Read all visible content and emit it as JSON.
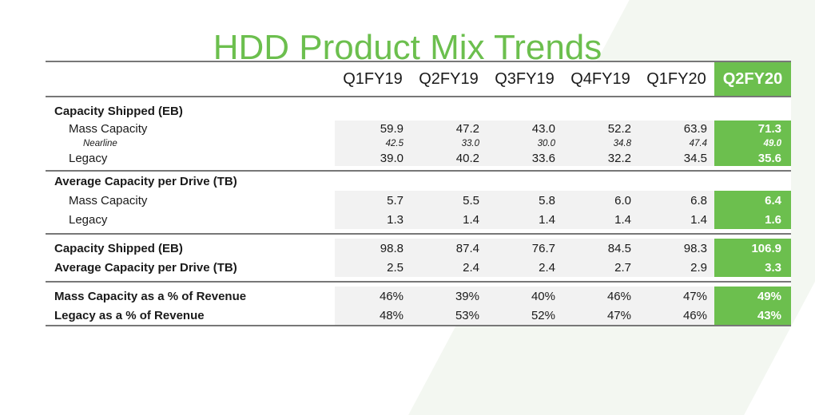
{
  "title": "HDD Product Mix Trends",
  "colors": {
    "accent": "#6cbf4e",
    "row_shade": "#f2f2f2",
    "rule": "#777777"
  },
  "columns": [
    "Q1FY19",
    "Q2FY19",
    "Q3FY19",
    "Q4FY19",
    "Q1FY20",
    "Q2FY20"
  ],
  "sections": {
    "cap_shipped": {
      "label": "Capacity Shipped (EB)",
      "mass": {
        "label": "Mass Capacity",
        "values": [
          "59.9",
          "47.2",
          "43.0",
          "52.2",
          "63.9",
          "71.3"
        ]
      },
      "nearline": {
        "label": "Nearline",
        "values": [
          "42.5",
          "33.0",
          "30.0",
          "34.8",
          "47.4",
          "49.0"
        ]
      },
      "legacy": {
        "label": "Legacy",
        "values": [
          "39.0",
          "40.2",
          "33.6",
          "32.2",
          "34.5",
          "35.6"
        ]
      }
    },
    "avg_cap": {
      "label": "Average Capacity per Drive (TB)",
      "mass": {
        "label": "Mass Capacity",
        "values": [
          "5.7",
          "5.5",
          "5.8",
          "6.0",
          "6.8",
          "6.4"
        ]
      },
      "legacy": {
        "label": "Legacy",
        "values": [
          "1.3",
          "1.4",
          "1.4",
          "1.4",
          "1.4",
          "1.6"
        ]
      }
    },
    "totals": {
      "cap_shipped": {
        "label": "Capacity Shipped (EB)",
        "values": [
          "98.8",
          "87.4",
          "76.7",
          "84.5",
          "98.3",
          "106.9"
        ]
      },
      "avg_cap": {
        "label": "Average Capacity per Drive (TB)",
        "values": [
          "2.5",
          "2.4",
          "2.4",
          "2.7",
          "2.9",
          "3.3"
        ]
      }
    },
    "revenue": {
      "mass_pct": {
        "label": "Mass Capacity as a % of Revenue",
        "values": [
          "46%",
          "39%",
          "40%",
          "46%",
          "47%",
          "49%"
        ]
      },
      "legacy_pct": {
        "label": "Legacy as a % of Revenue",
        "values": [
          "48%",
          "53%",
          "52%",
          "47%",
          "46%",
          "43%"
        ]
      }
    }
  }
}
